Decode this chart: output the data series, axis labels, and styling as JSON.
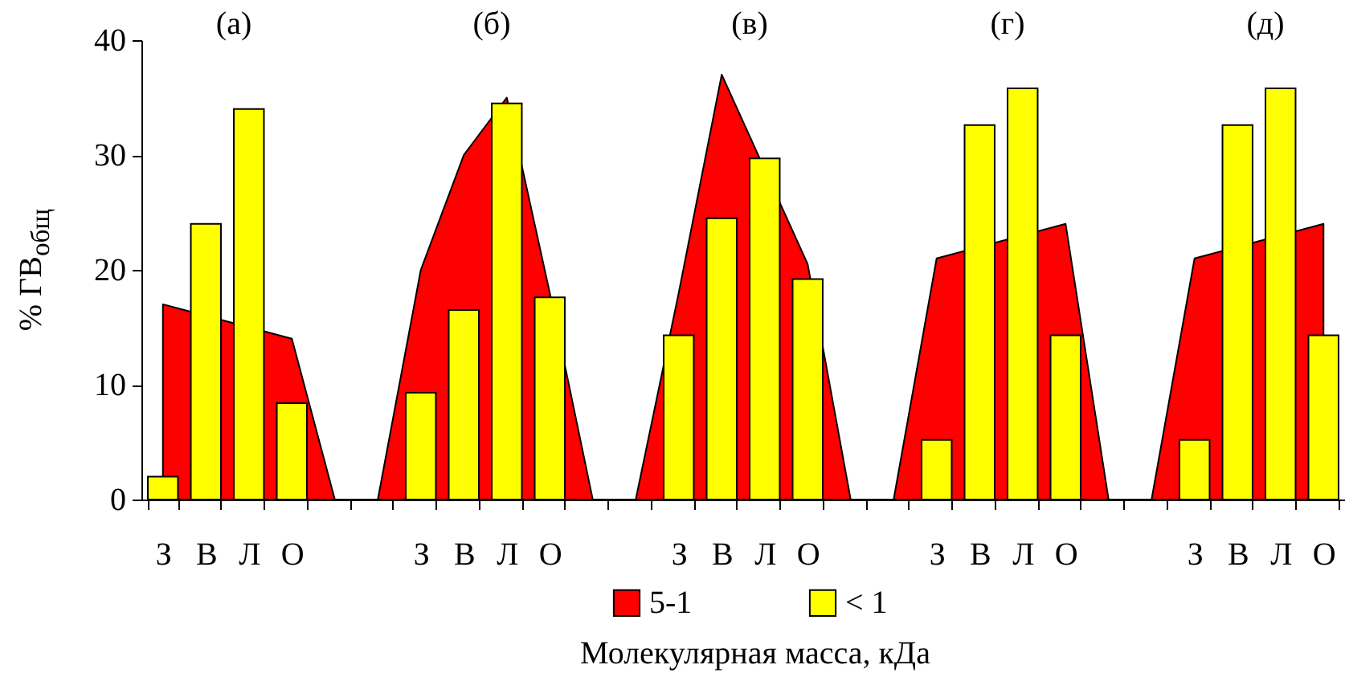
{
  "chart_data": {
    "type": "bar",
    "ylabel": "% ГВ$_{общ}$",
    "xlabel": "Молекулярная масса, кДа",
    "annotations": [
      "(а)",
      "(б)",
      "(в)",
      "(г)",
      "(д)"
    ],
    "categories": [
      "З",
      "В",
      "Л",
      "О",
      null,
      null,
      "З",
      "В",
      "Л",
      "О",
      null,
      null,
      "З",
      "В",
      "Л",
      "О",
      null,
      null,
      "З",
      "В",
      "Л",
      "О",
      null,
      null,
      "З",
      "В",
      "Л",
      "О"
    ],
    "series": [
      {
        "name": "5-1",
        "type": "area",
        "color": "#ff0000",
        "values": [
          17,
          null,
          null,
          14,
          0,
          0,
          20,
          30,
          35,
          18,
          0,
          0,
          18,
          37,
          null,
          20.5,
          0,
          0,
          21,
          null,
          null,
          24,
          0,
          0,
          21,
          null,
          null,
          24
        ]
      },
      {
        "name": "< 1",
        "color": "#ffff00",
        "values": [
          2,
          24,
          34,
          8.4,
          null,
          null,
          9.3,
          16.5,
          34.5,
          17.6,
          null,
          null,
          14.3,
          24.5,
          29.7,
          19.2,
          null,
          null,
          5.2,
          32.6,
          35.8,
          14.3,
          null,
          null,
          5.2,
          32.6,
          35.8,
          14.3
        ]
      }
    ],
    "ylim": [
      0,
      40
    ],
    "yticks": [
      0,
      10,
      20,
      30,
      40
    ],
    "grid": false,
    "legend": "bottom"
  }
}
